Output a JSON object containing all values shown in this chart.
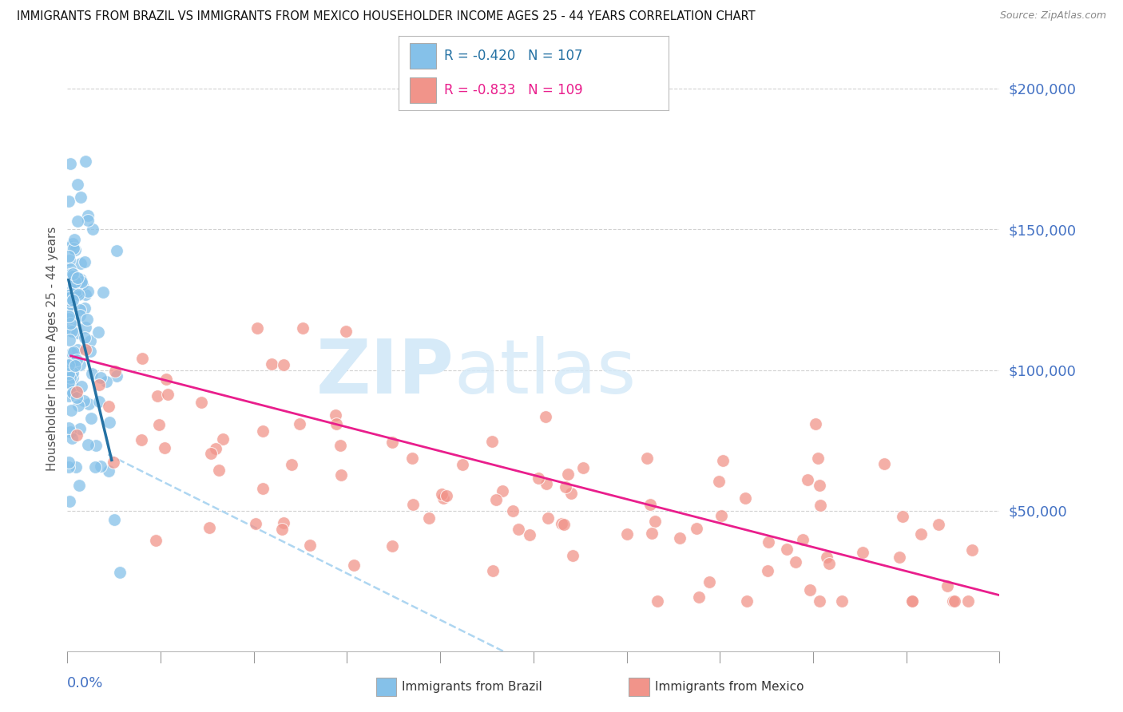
{
  "title": "IMMIGRANTS FROM BRAZIL VS IMMIGRANTS FROM MEXICO HOUSEHOLDER INCOME AGES 25 - 44 YEARS CORRELATION CHART",
  "source": "Source: ZipAtlas.com",
  "ylabel": "Householder Income Ages 25 - 44 years",
  "xmin": 0.0,
  "xmax": 0.8,
  "ymin": 0,
  "ymax": 215000,
  "brazil_R": -0.42,
  "brazil_N": 107,
  "mexico_R": -0.833,
  "mexico_N": 109,
  "brazil_color": "#85c1e9",
  "mexico_color": "#f1948a",
  "brazil_line_color": "#2471a3",
  "mexico_line_color": "#e91e8c",
  "dashed_line_color": "#aed6f1",
  "background_color": "#ffffff",
  "grid_color": "#cccccc",
  "title_color": "#111111",
  "tick_color": "#4472c4",
  "watermark_zip_color": "#d6eaf8",
  "watermark_atlas_color": "#d6eaf8"
}
